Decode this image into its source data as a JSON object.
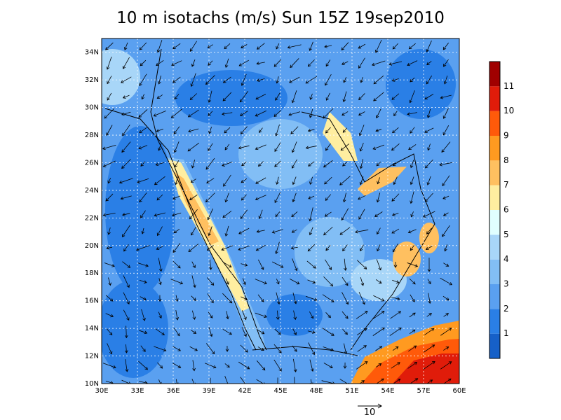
{
  "title": "10 m isotachs (m/s) Sun 15Z 19sep2010",
  "map": {
    "lonlim": [
      30,
      60
    ],
    "latlim": [
      10,
      35
    ],
    "lon_ticks": [
      {
        "value": 30,
        "label": "30E"
      },
      {
        "value": 33,
        "label": "33E"
      },
      {
        "value": 36,
        "label": "36E"
      },
      {
        "value": 39,
        "label": "39E"
      },
      {
        "value": 42,
        "label": "42E"
      },
      {
        "value": 45,
        "label": "45E"
      },
      {
        "value": 48,
        "label": "48E"
      },
      {
        "value": 51,
        "label": "51E"
      },
      {
        "value": 54,
        "label": "54E"
      },
      {
        "value": 57,
        "label": "57E"
      },
      {
        "value": 60,
        "label": "60E"
      }
    ],
    "lat_ticks": [
      {
        "value": 10,
        "label": "10N"
      },
      {
        "value": 12,
        "label": "12N"
      },
      {
        "value": 14,
        "label": "14N"
      },
      {
        "value": 16,
        "label": "16N"
      },
      {
        "value": 18,
        "label": "18N"
      },
      {
        "value": 20,
        "label": "20N"
      },
      {
        "value": 22,
        "label": "22N"
      },
      {
        "value": 24,
        "label": "24N"
      },
      {
        "value": 26,
        "label": "26N"
      },
      {
        "value": 28,
        "label": "28N"
      },
      {
        "value": 30,
        "label": "30N"
      },
      {
        "value": 32,
        "label": "32N"
      },
      {
        "value": 34,
        "label": "34N"
      }
    ]
  },
  "colorbar": {
    "levels": [
      1,
      2,
      3,
      4,
      5,
      6,
      7,
      8,
      9,
      10,
      11
    ],
    "colors": [
      "#1660c8",
      "#2a7fe6",
      "#5aa0f0",
      "#82bef5",
      "#a8d6f8",
      "#e0ffff",
      "#ffeea0",
      "#ffc060",
      "#ff9a20",
      "#ff5a0a",
      "#e01c0a",
      "#a00000"
    ]
  },
  "reference_vector": 10
}
